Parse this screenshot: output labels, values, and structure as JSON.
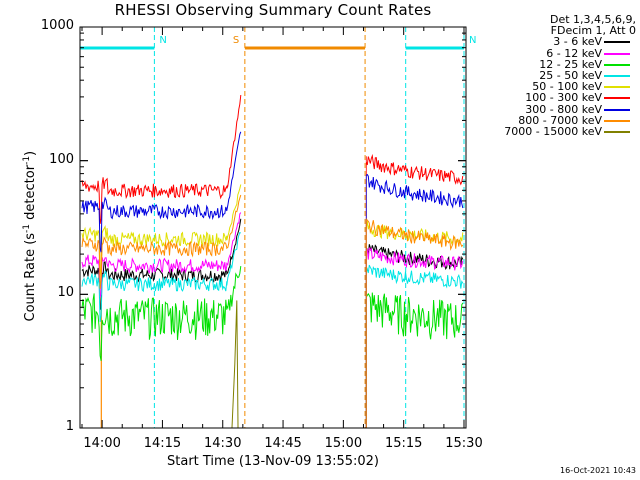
{
  "chart_data": {
    "type": "line",
    "title": "RHESSI Observing Summary Count Rates",
    "xlabel": "Start Time (13-Nov-09 13:55:02)",
    "ylabel": {
      "base": "Count Rate (s",
      "sup1": "-1",
      "mid": " detector",
      "sup2": "-1",
      "end": ")"
    },
    "yscale": "log",
    "ylim": [
      1,
      1000
    ],
    "yticks": [
      "1",
      "10",
      "100",
      "1000"
    ],
    "xlim_min": [
      -0.5,
      95.5
    ],
    "xticks": [
      {
        "label": "14:00",
        "min": 5
      },
      {
        "label": "14:15",
        "min": 20
      },
      {
        "label": "14:30",
        "min": 35
      },
      {
        "label": "14:45",
        "min": 50
      },
      {
        "label": "15:00",
        "min": 65
      },
      {
        "label": "15:15",
        "min": 80
      },
      {
        "label": "15:30",
        "min": 95
      }
    ],
    "legend_header": [
      "Det 1,3,4,5,6,9,",
      "FDecim 1, Att 0"
    ],
    "timestamp": "16-Oct-2021 10:43",
    "data_gaps": [
      [
        40.5,
        70.4
      ]
    ],
    "attenuator_events": [
      {
        "label": "N",
        "start_min": -0.5,
        "end_min": 18.0,
        "color": "#00e5e5"
      },
      {
        "label": "S",
        "start_min": 40.5,
        "end_min": 70.4,
        "color": "#f08a00"
      },
      {
        "label": "N",
        "start_min": 80.5,
        "end_min": 95.0,
        "color": "#00e5e5"
      }
    ],
    "series": [
      {
        "name": "3 - 6 keV",
        "color": "#000000",
        "pre_level": 14,
        "post_start": 23,
        "post_end": 17
      },
      {
        "name": "6 - 12 keV",
        "color": "#ff00ff",
        "pre_level": 16.5,
        "post_start": 21,
        "post_end": 17
      },
      {
        "name": "12 - 25 keV",
        "color": "#00e000",
        "pre_level": 7,
        "post_start": 9,
        "post_end": 6.5
      },
      {
        "name": "25 - 50 keV",
        "color": "#00e5e5",
        "pre_level": 12,
        "post_start": 16,
        "post_end": 12.5
      },
      {
        "name": "50 - 100 keV",
        "color": "#e0e000",
        "pre_level": 26,
        "post_start": 33,
        "post_end": 26
      },
      {
        "name": "100 - 300 keV",
        "color": "#ff0000",
        "pre_level": 60,
        "post_start": 108,
        "post_end": 74
      },
      {
        "name": "300 - 800 keV",
        "color": "#0000e0",
        "pre_level": 42,
        "post_start": 78,
        "post_end": 50
      },
      {
        "name": "800 - 7000 keV",
        "color": "#ff8c00",
        "pre_level": 22,
        "post_start": 36,
        "post_end": 24
      },
      {
        "name": "7000 - 15000 keV",
        "color": "#808000",
        "pre_level": null,
        "post_start": null,
        "post_end": null
      }
    ]
  }
}
